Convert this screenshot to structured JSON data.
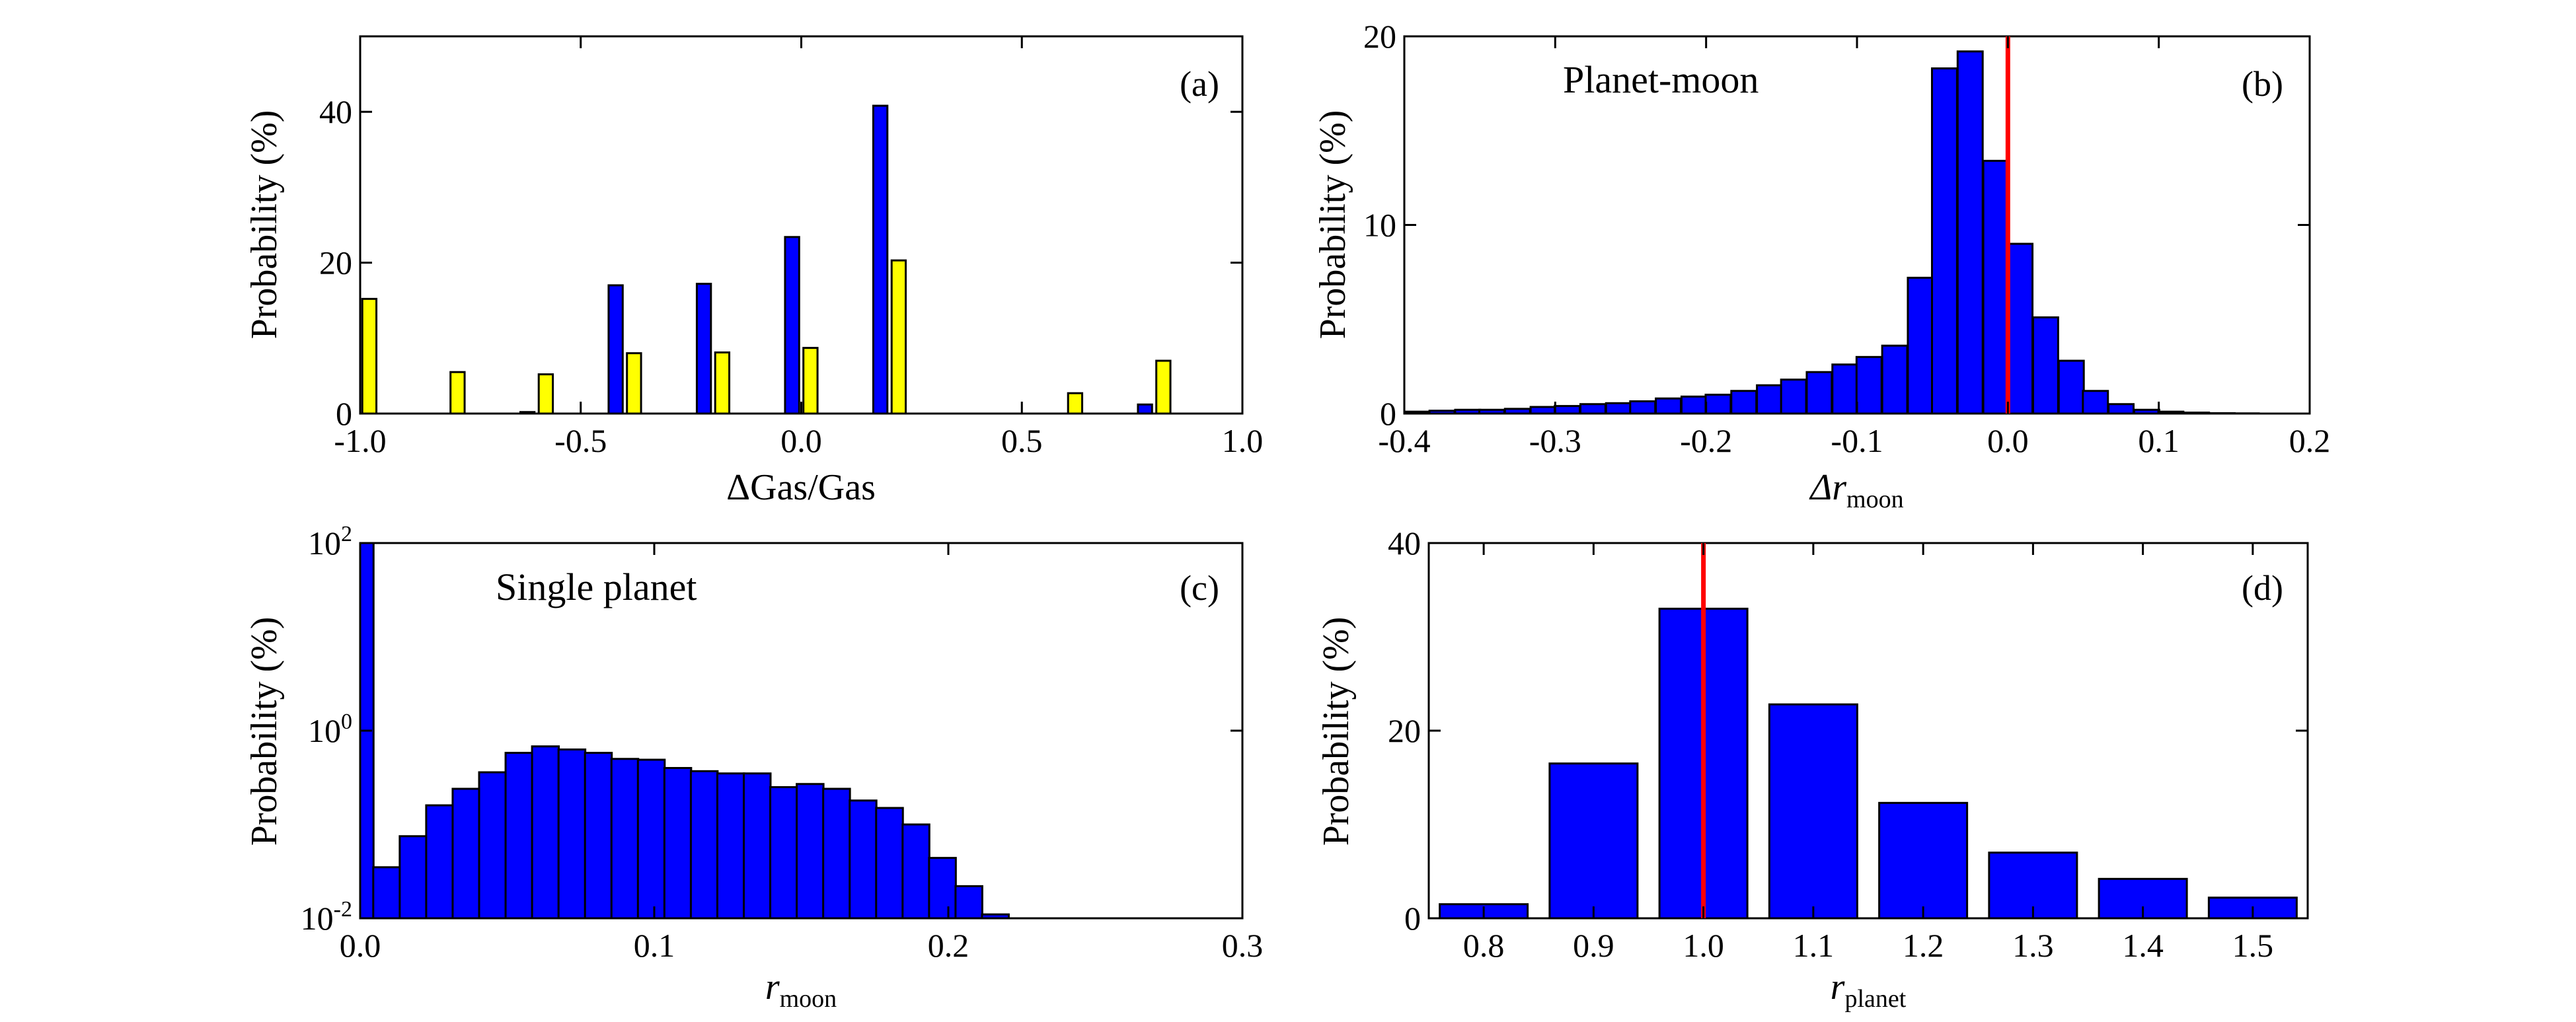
{
  "figure": {
    "panels": [
      {
        "id": "a",
        "letter": "(a)",
        "ylabel": "Probability (%)",
        "xlabel": "ΔGas/Gas",
        "annotation": ""
      },
      {
        "id": "b",
        "letter": "(b)",
        "ylabel": "Probability (%)",
        "xlabel_main": "Δr",
        "xlabel_sub": "moon",
        "annotation": "Planet-moon"
      },
      {
        "id": "c",
        "letter": "(c)",
        "ylabel": "Probability (%)",
        "xlabel_main": "r",
        "xlabel_sub": "moon",
        "annotation": "Single planet"
      },
      {
        "id": "d",
        "letter": "(d)",
        "ylabel": "Probability (%)",
        "xlabel_main": "r",
        "xlabel_sub": "planet",
        "annotation": ""
      }
    ]
  },
  "colors": {
    "blue": "#0000ff",
    "yellow": "#ffff00",
    "ref_line": "#ff0000",
    "frame": "#000000"
  },
  "chart_data": [
    {
      "panel": "a",
      "type": "bar",
      "title": "",
      "xlabel": "ΔGas/Gas",
      "ylabel": "Probability (%)",
      "xlim": [
        -1.0,
        1.0
      ],
      "ylim": [
        0,
        50
      ],
      "xticks": [
        -1.0,
        -0.5,
        0.0,
        0.5,
        1.0
      ],
      "xtick_labels": [
        "-1.0",
        "-0.5",
        "0.0",
        "0.5",
        "1.0"
      ],
      "yticks": [
        0,
        20,
        40
      ],
      "ytick_labels": [
        "0",
        "20",
        "40"
      ],
      "x": [
        -1.0,
        -0.8,
        -0.6,
        -0.4,
        -0.2,
        0.0,
        0.2,
        0.4,
        0.6,
        0.8
      ],
      "series": [
        {
          "color": "#0000ff",
          "values": [
            0,
            0,
            0.2,
            17,
            17.2,
            23.4,
            40.8,
            0,
            0,
            1.2
          ]
        },
        {
          "color": "#ffff00",
          "values": [
            15.2,
            5.5,
            5.2,
            8,
            8.1,
            8.7,
            20.3,
            0,
            2.7,
            7
          ]
        }
      ]
    },
    {
      "panel": "b",
      "type": "bar",
      "title": "",
      "xlabel": "Δr_moon",
      "ylabel": "Probability (%)",
      "xlim": [
        -0.4,
        0.2
      ],
      "ylim": [
        0,
        20
      ],
      "xticks": [
        -0.4,
        -0.3,
        -0.2,
        -0.1,
        0.0,
        0.1,
        0.2
      ],
      "xtick_labels": [
        "-0.4",
        "-0.3",
        "-0.2",
        "-0.1",
        "0.0",
        "0.1",
        "0.2"
      ],
      "yticks": [
        0,
        10,
        20
      ],
      "ytick_labels": [
        "0",
        "10",
        "20"
      ],
      "bin_width": 0.0166,
      "x": [
        -0.392,
        -0.375,
        -0.358,
        -0.342,
        -0.325,
        -0.308,
        -0.292,
        -0.275,
        -0.258,
        -0.242,
        -0.225,
        -0.208,
        -0.192,
        -0.175,
        -0.158,
        -0.142,
        -0.125,
        -0.108,
        -0.092,
        -0.075,
        -0.058,
        -0.042,
        -0.025,
        -0.008,
        0.008,
        0.025,
        0.042,
        0.058,
        0.075,
        0.092,
        0.108,
        0.125,
        0.142,
        0.158,
        0.175
      ],
      "values": [
        0.1,
        0.15,
        0.2,
        0.2,
        0.25,
        0.35,
        0.4,
        0.5,
        0.55,
        0.65,
        0.8,
        0.9,
        1.0,
        1.2,
        1.5,
        1.8,
        2.2,
        2.6,
        3.0,
        3.6,
        7.2,
        18.3,
        19.2,
        13.4,
        9.0,
        5.1,
        2.8,
        1.2,
        0.5,
        0.2,
        0.1,
        0.05,
        0.02,
        0.01,
        0.0
      ],
      "reference_line_x": 0.0
    },
    {
      "panel": "c",
      "type": "bar",
      "title": "",
      "xlabel": "r_moon",
      "ylabel": "Probability (%)",
      "yscale": "log",
      "xlim": [
        0.0,
        0.3
      ],
      "ylim": [
        0.01,
        100
      ],
      "xticks": [
        0.0,
        0.1,
        0.2,
        0.3
      ],
      "xtick_labels": [
        "0.0",
        "0.1",
        "0.2",
        "0.3"
      ],
      "yticks": [
        0.01,
        1,
        100
      ],
      "ytick_labels": [
        {
          "base": "10",
          "exp": "-2"
        },
        {
          "base": "10",
          "exp": "0"
        },
        {
          "base": "10",
          "exp": "2"
        }
      ],
      "bin_width": 0.0091,
      "x": [
        0.0,
        0.009,
        0.018,
        0.027,
        0.036,
        0.045,
        0.054,
        0.063,
        0.072,
        0.081,
        0.09,
        0.099,
        0.108,
        0.117,
        0.126,
        0.135,
        0.144,
        0.153,
        0.162,
        0.171,
        0.18,
        0.189,
        0.198,
        0.207,
        0.216
      ],
      "values": [
        100,
        0.035,
        0.075,
        0.16,
        0.24,
        0.36,
        0.58,
        0.68,
        0.63,
        0.58,
        0.5,
        0.49,
        0.4,
        0.37,
        0.35,
        0.35,
        0.25,
        0.27,
        0.24,
        0.18,
        0.15,
        0.1,
        0.044,
        0.022,
        0.011
      ]
    },
    {
      "panel": "d",
      "type": "bar",
      "title": "",
      "xlabel": "r_planet",
      "ylabel": "Probability (%)",
      "xlim": [
        0.75,
        1.55
      ],
      "ylim": [
        0,
        40
      ],
      "xticks": [
        0.8,
        0.9,
        1.0,
        1.1,
        1.2,
        1.3,
        1.4,
        1.5
      ],
      "xtick_labels": [
        "0.8",
        "0.9",
        "1.0",
        "1.1",
        "1.2",
        "1.3",
        "1.4",
        "1.5"
      ],
      "yticks": [
        0,
        20,
        40
      ],
      "ytick_labels": [
        "0",
        "20",
        "40"
      ],
      "bin_width": 0.08,
      "x": [
        0.8,
        0.9,
        1.0,
        1.1,
        1.2,
        1.3,
        1.4,
        1.5
      ],
      "values": [
        1.5,
        16.5,
        33,
        22.8,
        12.3,
        7.0,
        4.2,
        2.2
      ],
      "reference_line_x": 1.0
    }
  ]
}
